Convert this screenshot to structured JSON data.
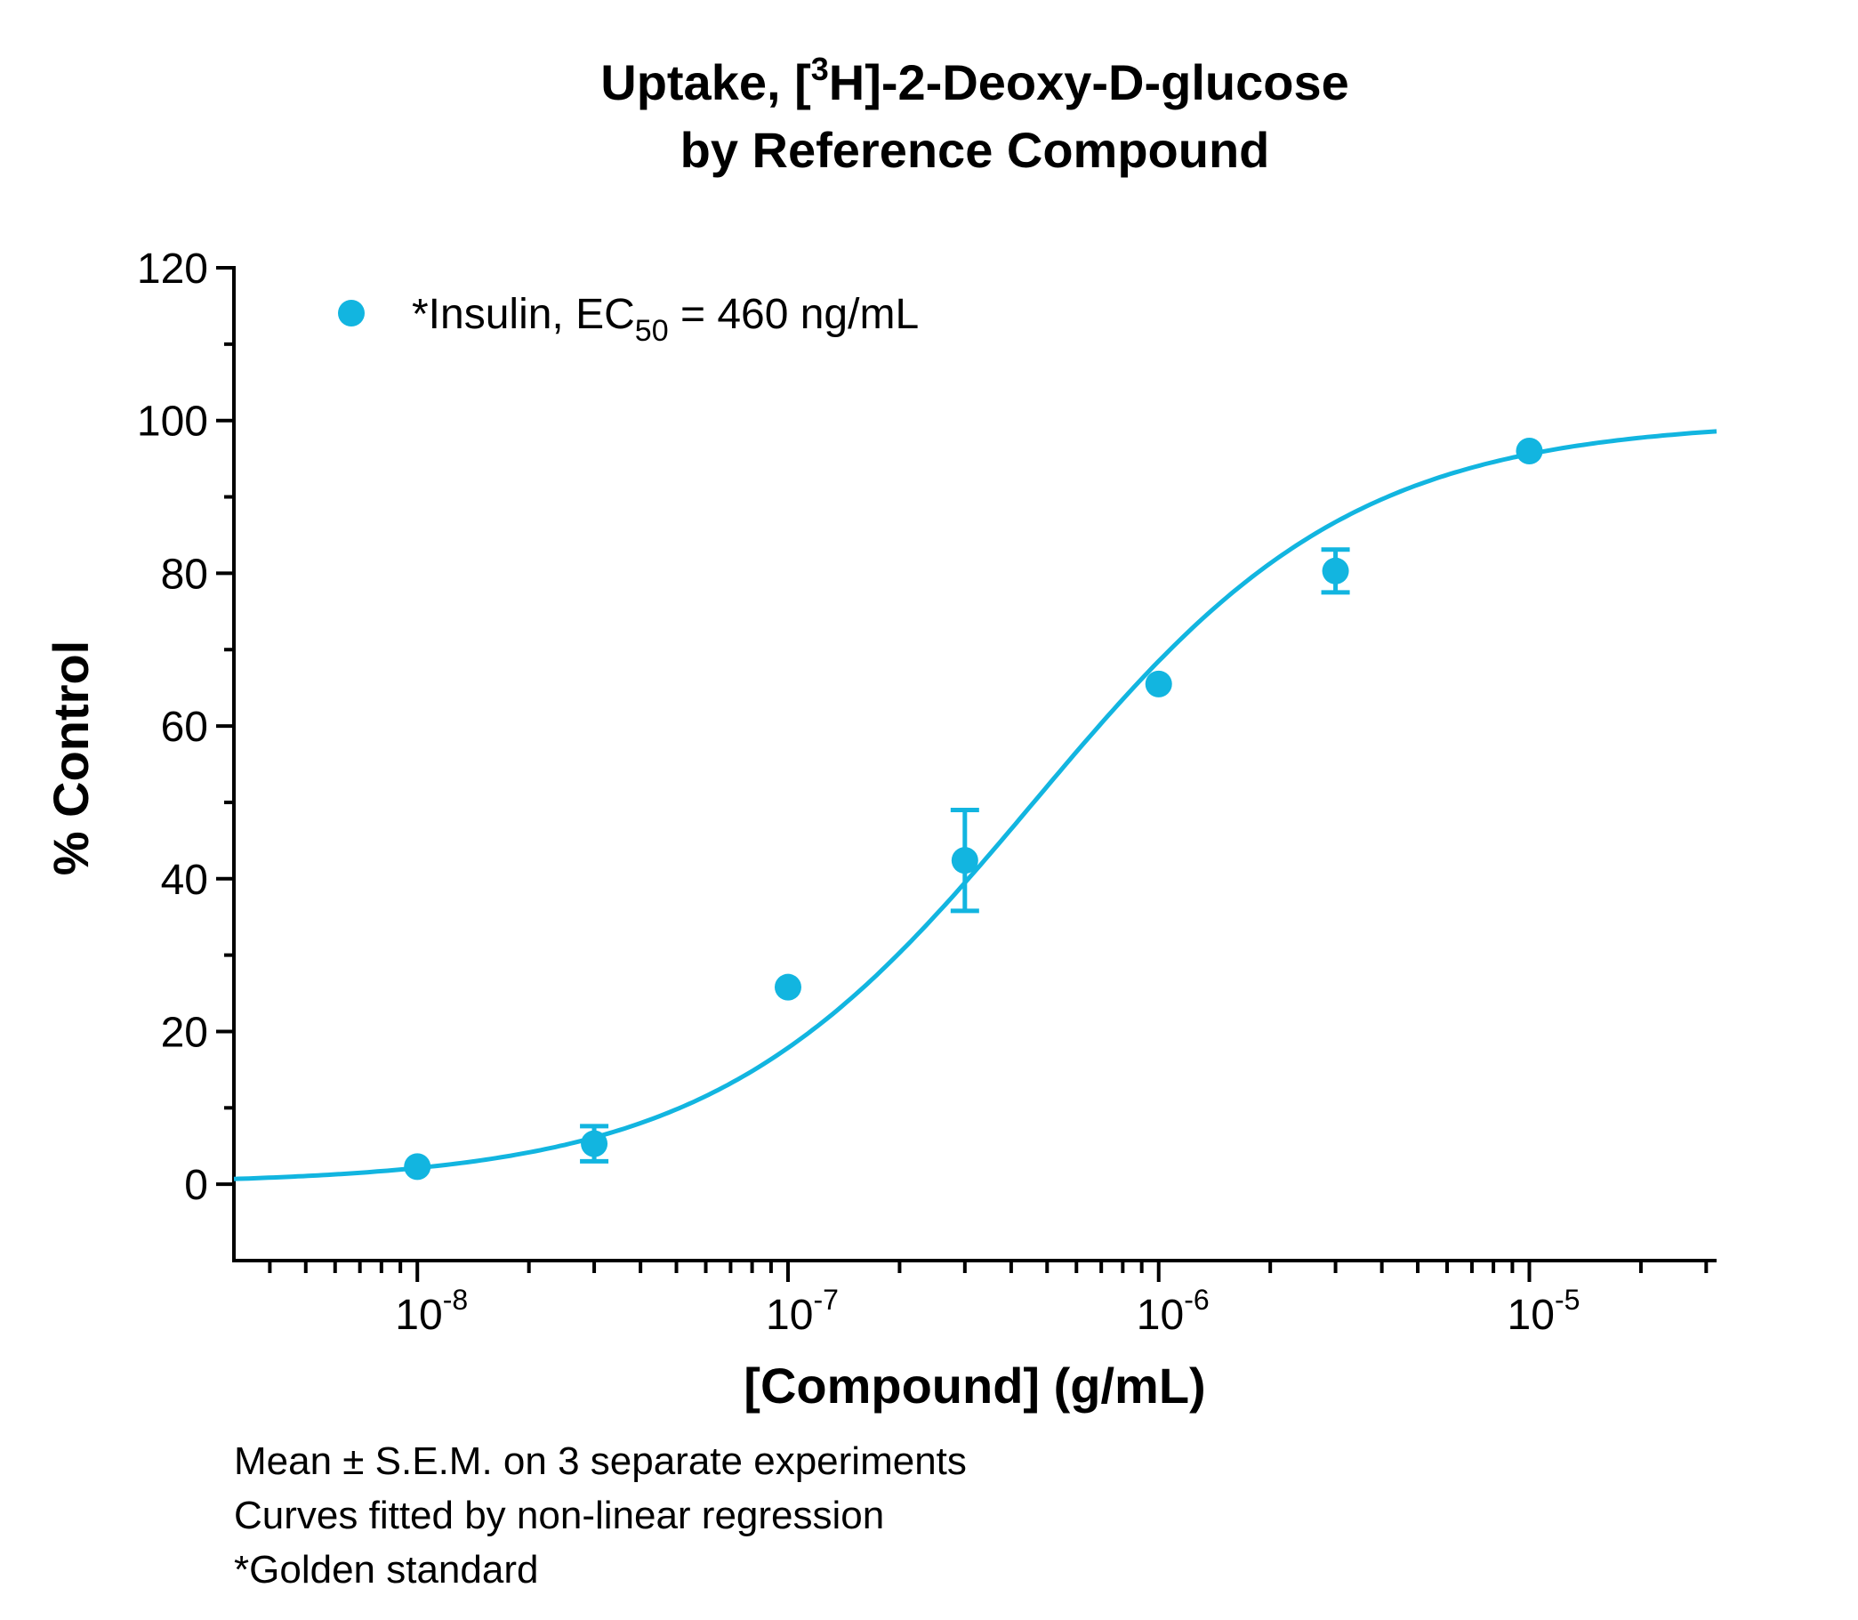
{
  "chart_data": {
    "type": "scatter",
    "title_parts": [
      "Uptake, [",
      "3",
      "H]-2-Deoxy-D-glucose"
    ],
    "title_line2": "by Reference Compound",
    "xlabel": "[Compound] (g/mL)",
    "ylabel": "% Control",
    "x_scale": "log",
    "xlim": [
      3.2e-09,
      3.2e-05
    ],
    "ylim": [
      -10,
      120
    ],
    "y_ticks": [
      "120",
      "100",
      "80",
      "60",
      "40",
      "20",
      "0"
    ],
    "x_ticks": [
      {
        "base": "10",
        "exp": "-8"
      },
      {
        "base": "10",
        "exp": "-7"
      },
      {
        "base": "10",
        "exp": "-6"
      },
      {
        "base": "10",
        "exp": "-5"
      }
    ],
    "grid": false,
    "legend_position": "top-left",
    "color": "#12b5e0",
    "series": [
      {
        "legend": {
          "prefix": "*Insulin, EC",
          "sub": "50",
          "suffix": " = 460 ng/mL"
        },
        "points": [
          {
            "x": 1e-08,
            "y": 2.3,
            "sem": 0
          },
          {
            "x": 3e-08,
            "y": 5.3,
            "sem": 2.3
          },
          {
            "x": 1e-07,
            "y": 25.8,
            "sem": 0
          },
          {
            "x": 3e-07,
            "y": 42.4,
            "sem": 6.6
          },
          {
            "x": 1e-06,
            "y": 65.5,
            "sem": 0
          },
          {
            "x": 3e-06,
            "y": 80.3,
            "sem": 2.8
          },
          {
            "x": 1e-05,
            "y": 96.0,
            "sem": 0
          }
        ],
        "fit": {
          "model": "sigmoidal dose-response",
          "bottom": 0,
          "top": 100,
          "ec50": 4.6e-07,
          "hill_slope": 1
        }
      }
    ]
  },
  "notes": [
    "Mean ± S.E.M. on 3 separate experiments",
    "Curves fitted by non-linear regression",
    "*Golden standard"
  ]
}
